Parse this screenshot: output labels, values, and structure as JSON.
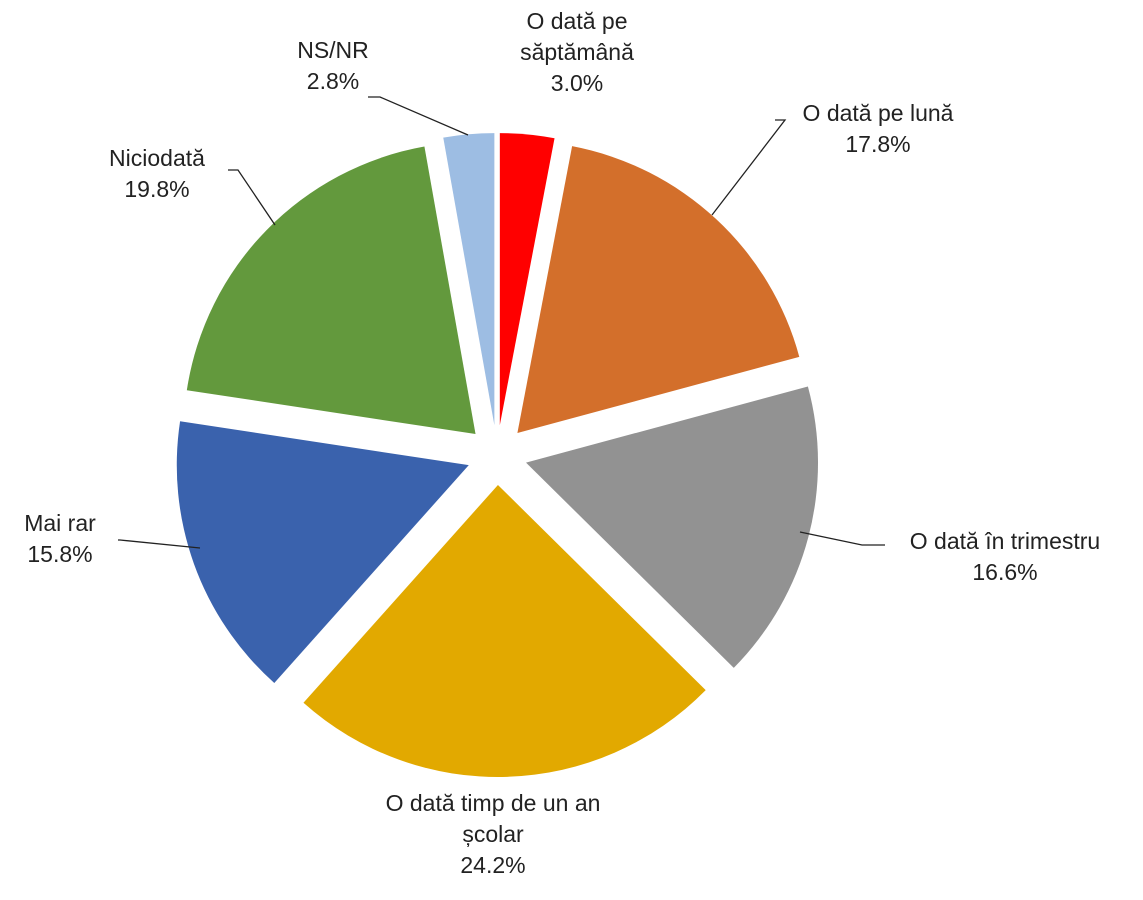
{
  "chart_data": {
    "type": "pie",
    "categories": [
      "O dată pe săptămână",
      "O dată pe lună",
      "O dată în trimestru",
      "O dată timp de un an școlar",
      "Mai rar",
      "Niciodată",
      "NS/NR"
    ],
    "values": [
      3.0,
      17.8,
      16.6,
      24.2,
      15.8,
      19.8,
      2.8
    ],
    "value_labels": [
      "3.0%",
      "17.8%",
      "16.6%",
      "24.2%",
      "15.8%",
      "19.8%",
      "2.8%"
    ],
    "colors": [
      "#ff0000",
      "#d36f2b",
      "#929292",
      "#e2a900",
      "#3a62ad",
      "#63993d",
      "#9dbde3"
    ]
  }
}
